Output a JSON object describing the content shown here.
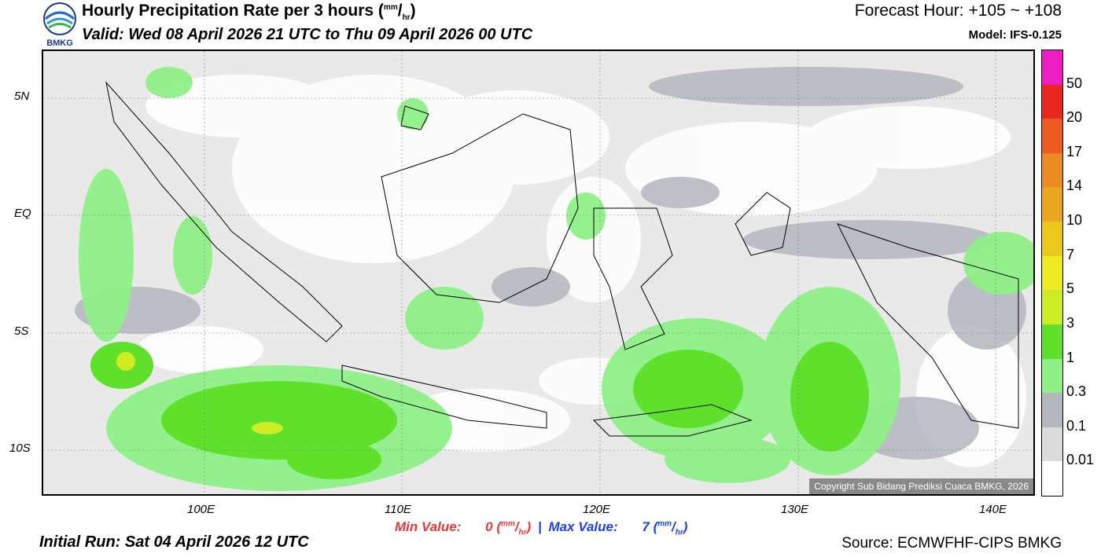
{
  "logo": {
    "text": "BMKG"
  },
  "header": {
    "title": "Hourly Precipitation Rate per 3 hours",
    "title_units_open": " (",
    "title_units_num": "mm",
    "title_units_slash": "/",
    "title_units_den": "hr",
    "title_units_close": ")",
    "valid": "Valid: Wed 08 April 2026 21 UTC to Thu 09 April 2026 00 UTC",
    "forecast_hour": "Forecast Hour: +105 ~ +108",
    "model": "Model: IFS-0.125"
  },
  "map": {
    "lat_labels": [
      "5N",
      "EQ",
      "5S",
      "10S"
    ],
    "lon_labels": [
      "100E",
      "110E",
      "120E",
      "130E",
      "140E"
    ],
    "copyright": "Copyright Sub Bidang Prediksi Cuaca BMKG, 2026"
  },
  "colorbar": {
    "labels": [
      "50",
      "20",
      "17",
      "14",
      "10",
      "7",
      "5",
      "3",
      "1",
      "0.3",
      "0.1",
      "0.01"
    ],
    "colors": [
      "#ec1ec3",
      "#e8271f",
      "#ea5b21",
      "#ec8a22",
      "#eca51f",
      "#ecc81e",
      "#edea21",
      "#cdec26",
      "#5fe02b",
      "#8ef087",
      "#b3b7be",
      "#dcdcdc",
      "#ffffff"
    ]
  },
  "footer": {
    "min_label": "Min Value:",
    "min_value": "0",
    "max_label": "Max Value:",
    "max_value": "7",
    "unit_num": "mm",
    "unit_slash": "/",
    "unit_den": "hr",
    "separator": "|",
    "initial_run": "Initial Run: Sat 04 April 2026 12 UTC",
    "source": "Source: ECMWFHF-CIPS BMKG",
    "min_color": "#e8383d",
    "max_color": "#1e3ee8"
  }
}
